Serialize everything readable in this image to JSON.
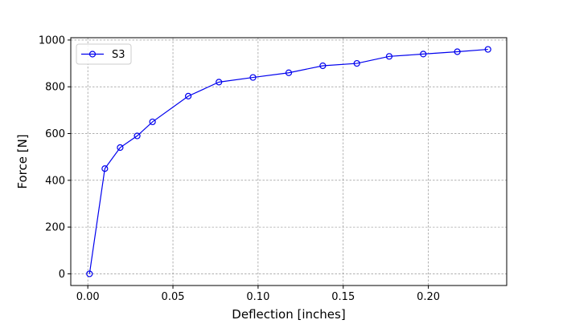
{
  "chart_data": {
    "type": "line",
    "title": "",
    "xlabel": "Deflection [inches]",
    "ylabel": "Force [N]",
    "xlim": [
      -0.01,
      0.246
    ],
    "ylim": [
      -50,
      1010
    ],
    "x_ticks": [
      0.0,
      0.05,
      0.1,
      0.15,
      0.2
    ],
    "x_tick_labels": [
      "0.00",
      "0.05",
      "0.10",
      "0.15",
      "0.20"
    ],
    "y_ticks": [
      0,
      200,
      400,
      600,
      800,
      1000
    ],
    "y_tick_labels": [
      "0",
      "200",
      "400",
      "600",
      "800",
      "1000"
    ],
    "grid": true,
    "legend_position": "top-left",
    "series": [
      {
        "name": "S3",
        "color": "#0000ee",
        "marker": "open-circle",
        "x": [
          0.001,
          0.01,
          0.019,
          0.029,
          0.038,
          0.059,
          0.077,
          0.097,
          0.118,
          0.138,
          0.158,
          0.177,
          0.197,
          0.217,
          0.235
        ],
        "y": [
          0,
          450,
          540,
          590,
          650,
          760,
          820,
          840,
          860,
          890,
          900,
          930,
          940,
          950,
          960
        ]
      }
    ]
  }
}
